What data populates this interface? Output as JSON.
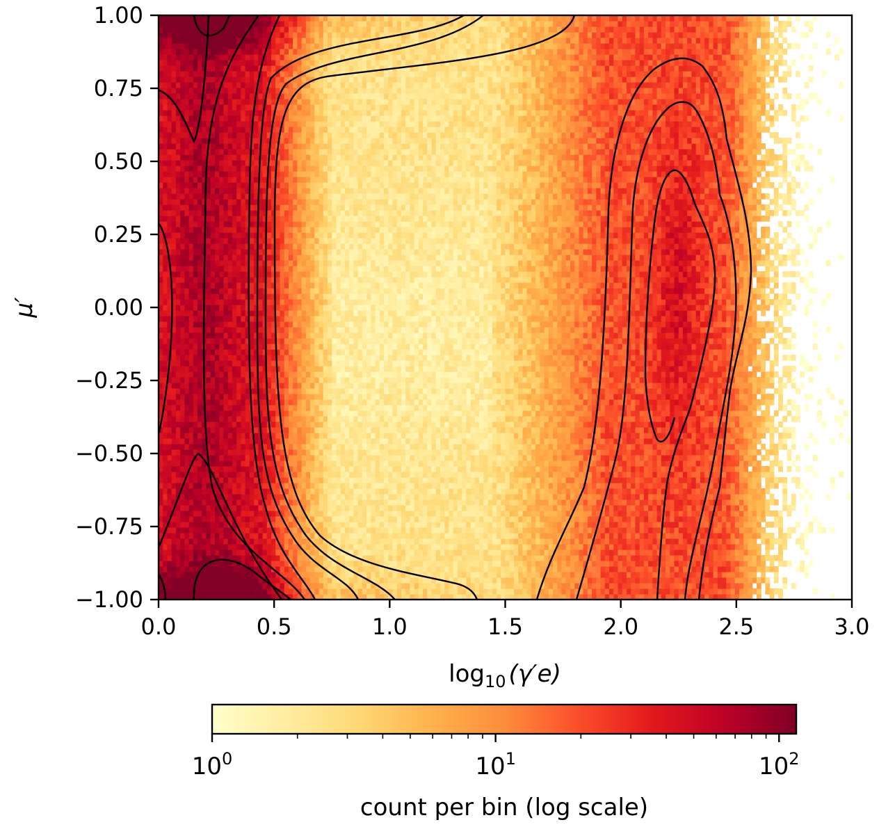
{
  "chart_data": {
    "type": "heatmap",
    "subtype": "2d-histogram-with-density-contours",
    "xlabel": {
      "text": "log",
      "sub": "10",
      "tail": "(γ′e)"
    },
    "ylabel": "μ′",
    "xlim": [
      0.0,
      3.0
    ],
    "ylim": [
      -1.0,
      1.0
    ],
    "x_ticks": [
      "0.0",
      "0.5",
      "1.0",
      "1.5",
      "2.0",
      "2.5",
      "3.0"
    ],
    "x_tick_values": [
      0.0,
      0.5,
      1.0,
      1.5,
      2.0,
      2.5,
      3.0
    ],
    "y_ticks": [
      "1.00",
      "0.75",
      "0.50",
      "0.25",
      "0.00",
      "−0.25",
      "−0.50",
      "−0.75",
      "−1.00"
    ],
    "y_tick_values": [
      1.0,
      0.75,
      0.5,
      0.25,
      0.0,
      -0.25,
      -0.5,
      -0.75,
      -1.0
    ],
    "colormap": "YlOrRd",
    "color_scale": "log",
    "colorbar": {
      "label": "count per bin (log scale)",
      "min": 1,
      "max": 115,
      "ticks": [
        {
          "base": "10",
          "exp": "0",
          "value": 1
        },
        {
          "base": "10",
          "exp": "1",
          "value": 10
        },
        {
          "base": "10",
          "exp": "2",
          "value": 100
        }
      ]
    },
    "bins": {
      "x": 160,
      "y": 105
    },
    "density_peaks": [
      {
        "x": 0.25,
        "y": 0.98,
        "approx_count": 110
      },
      {
        "x": 0.3,
        "y": -0.97,
        "approx_count": 115
      },
      {
        "x": 2.25,
        "y": 0.1,
        "approx_count": 60
      }
    ],
    "grid": false,
    "legend": "none",
    "contour_color": "#000000"
  }
}
